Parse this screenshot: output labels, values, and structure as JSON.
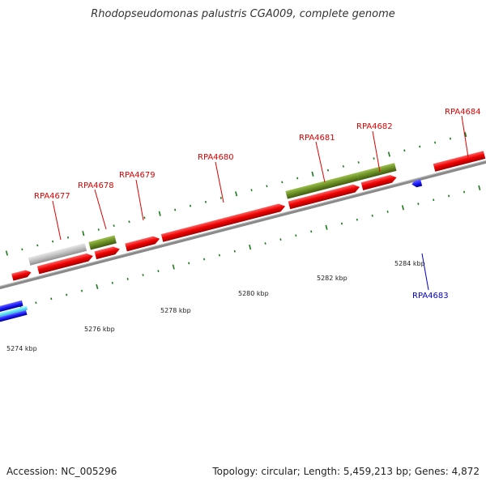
{
  "title": "Rhodopseudomonas palustris CGA009, complete genome",
  "footer": {
    "accession": "Accession: NC_005296",
    "stats": "Topology: circular; Length: 5,459,213 bp; Genes: 4,872"
  },
  "colors": {
    "forward_gene": "#e00000",
    "reverse_gene": "#1a1aff",
    "olive_feature": "#6b8e23",
    "grey_feature": "#bbbbbb",
    "backbone": "#8a8a8a",
    "tick": "#1a7a1a"
  },
  "axis_labels": [
    "5274 kbp",
    "5276 kbp",
    "5278 kbp",
    "5280 kbp",
    "5282 kbp",
    "5284 kbp"
  ],
  "gene_labels": [
    {
      "text": "RPA4677",
      "color": "red"
    },
    {
      "text": "RPA4678",
      "color": "red"
    },
    {
      "text": "RPA4679",
      "color": "red"
    },
    {
      "text": "RPA4680",
      "color": "red"
    },
    {
      "text": "RPA4681",
      "color": "red"
    },
    {
      "text": "RPA4682",
      "color": "red"
    },
    {
      "text": "RPA4684",
      "color": "red"
    },
    {
      "text": "RPA4683",
      "color": "blue"
    }
  ]
}
